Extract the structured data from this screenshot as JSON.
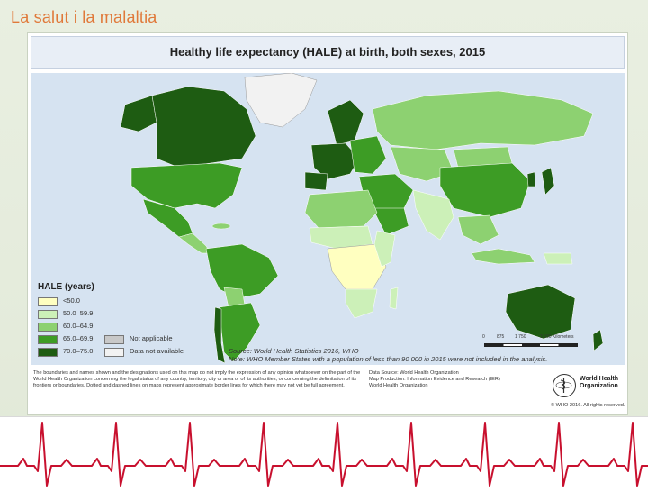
{
  "slide": {
    "title": "La salut i la malaltia"
  },
  "map": {
    "heading": "Healthy life expectancy (HALE) at birth, both sexes, 2015",
    "legend": {
      "title": "HALE (years)",
      "items": [
        {
          "label": "<50.0",
          "color": "#ffffc0"
        },
        {
          "label": "50.0–59.9",
          "color": "#ccf0b8"
        },
        {
          "label": "60.0–64.9",
          "color": "#8dd171"
        },
        {
          "label": "65.0–69.9",
          "color": "#3d9c25"
        },
        {
          "label": "70.0–75.0",
          "color": "#1e5c12"
        }
      ],
      "extra_items": [
        {
          "label": "Not applicable",
          "color": "#c8c8c8"
        },
        {
          "label": "Data not available",
          "color": "#f2f2f2"
        }
      ]
    },
    "source_line": "Source: World Health Statistics 2016, WHO",
    "note_line": "Note: WHO Member States with a population of less than 90 000 in 2015 were not included in the analysis.",
    "scale": {
      "ticks": [
        "0",
        "875",
        "1 750",
        "3 500 Kilometers"
      ]
    },
    "disclaimer": "The boundaries and names shown and the designations used on this map do not imply the expression of any opinion whatsoever on the part of the World Health Organization concerning the legal status of any country, territory, city or area or of its authorities, or concerning the delimitation of its frontiers or boundaries. Dotted and dashed lines on maps represent approximate border lines for which there may not yet be full agreement.",
    "credits": {
      "data_source": "Data Source: World Health Organization",
      "map_production": "Map Production: Information Evidence and Research (IER)",
      "org": "World Health Organization"
    },
    "who_logo": {
      "line1": "World Health",
      "line2": "Organization",
      "copyright": "© WHO 2016. All rights reserved."
    }
  },
  "colors": {
    "title_orange": "#e0793a",
    "ocean": "#d6e3f1",
    "ecg_red": "#c8102e"
  }
}
